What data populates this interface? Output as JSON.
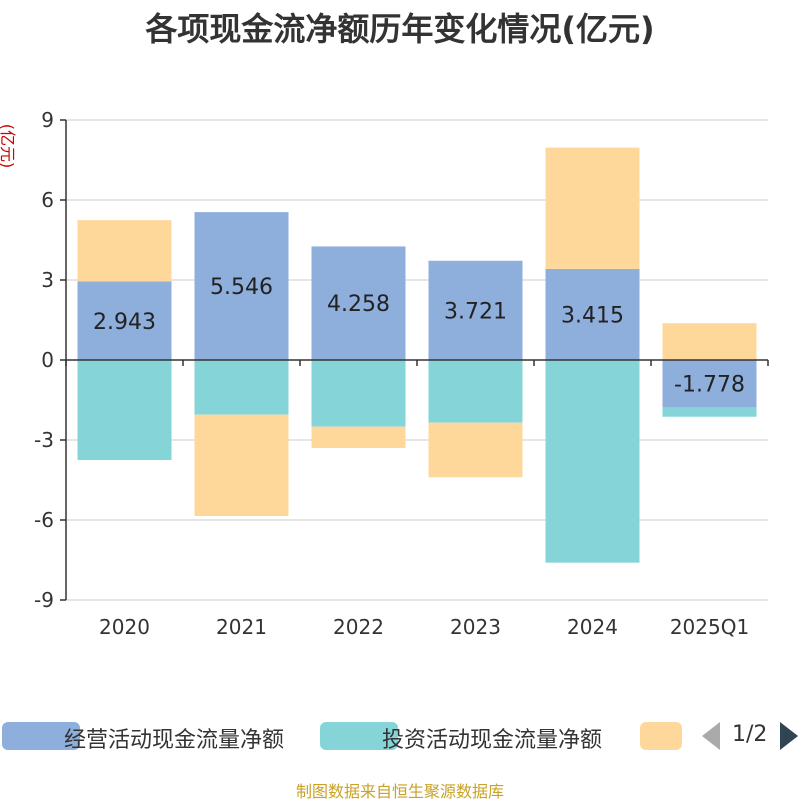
{
  "chart_data": {
    "type": "bar",
    "stacked": true,
    "title": "各项现金流净额历年变化情况(亿元)",
    "ylabel": "(亿元)",
    "xlabel": "",
    "ylim": [
      -9,
      9
    ],
    "yticks": [
      9,
      6,
      3,
      0,
      -3,
      -6,
      -9
    ],
    "ytick_labels": [
      "9",
      "6",
      "3",
      "0",
      "-3",
      "-6",
      "-9"
    ],
    "grid": true,
    "categories": [
      "2020",
      "2021",
      "2022",
      "2023",
      "2024",
      "2025Q1"
    ],
    "series": [
      {
        "name": "经营活动现金流量净额",
        "color": "#8eaedc",
        "values": [
          2.943,
          5.546,
          4.258,
          3.721,
          3.415,
          -1.778
        ],
        "labels": [
          "2.943",
          "5.546",
          "4.258",
          "3.721",
          "3.415",
          "-1.778"
        ]
      },
      {
        "name": "投资活动现金流量净额",
        "color": "#85d4d8",
        "values": [
          -3.75,
          -2.05,
          -2.5,
          -2.35,
          -7.6,
          -0.35
        ]
      },
      {
        "name": "",
        "color": "#fed89a",
        "values": [
          2.3,
          -3.8,
          -0.8,
          -2.05,
          4.55,
          1.38
        ]
      }
    ]
  },
  "legend": {
    "items": [
      {
        "label": "经营活动现金流量净额",
        "color": "#8eaedc"
      },
      {
        "label": "投资活动现金流量净额",
        "color": "#85d4d8"
      },
      {
        "label": "",
        "color": "#fed89a"
      }
    ],
    "pager_text": "1/2"
  },
  "source_text": "制图数据来自恒生聚源数据库"
}
